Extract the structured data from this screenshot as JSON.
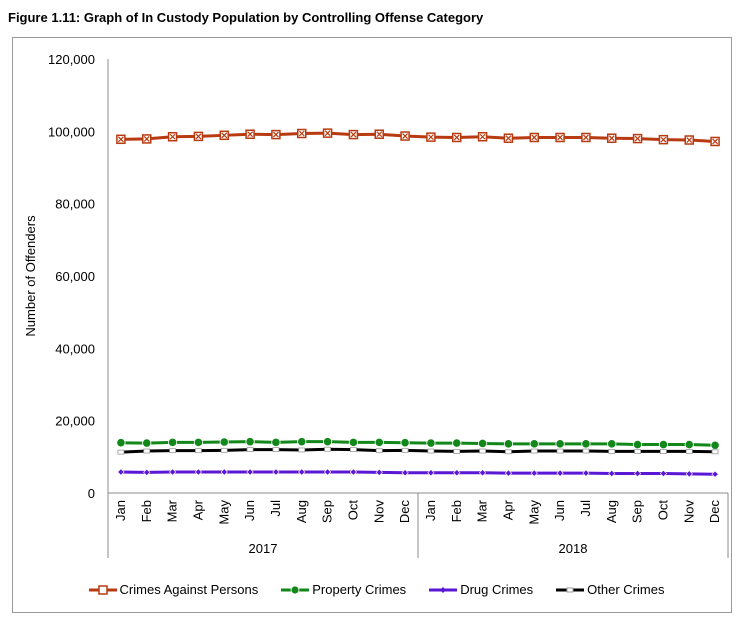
{
  "figure_title": "Figure 1.11:  Graph of In Custody Population by Controlling Offense Category",
  "chart_data": {
    "type": "line",
    "title": "Graph of In Custody Population by Controlling Offense Category",
    "xlabel": "",
    "ylabel": "Number of Offenders",
    "ylim": [
      0,
      120000
    ],
    "yticks": [
      0,
      20000,
      40000,
      60000,
      80000,
      100000,
      120000
    ],
    "ytick_labels": [
      "0",
      "20,000",
      "40,000",
      "60,000",
      "80,000",
      "100,000",
      "120,000"
    ],
    "grid": false,
    "legend_position": "bottom",
    "groups": [
      {
        "label": "2017",
        "months": [
          "Jan",
          "Feb",
          "Mar",
          "Apr",
          "May",
          "Jun",
          "Jul",
          "Aug",
          "Sep",
          "Oct",
          "Nov",
          "Dec"
        ]
      },
      {
        "label": "2018",
        "months": [
          "Jan",
          "Feb",
          "Mar",
          "Apr",
          "May",
          "Jun",
          "Jul",
          "Aug",
          "Sep",
          "Oct",
          "Nov",
          "Dec"
        ]
      }
    ],
    "series": [
      {
        "name": "Crimes Against Persons",
        "color": "#b83a10",
        "marker": "x-box",
        "values": [
          97800,
          97900,
          98500,
          98600,
          98900,
          99200,
          99100,
          99400,
          99500,
          99100,
          99200,
          98700,
          98400,
          98300,
          98500,
          98100,
          98300,
          98300,
          98300,
          98100,
          98000,
          97700,
          97600,
          97200
        ]
      },
      {
        "name": "Property Crimes",
        "color": "#12871a",
        "marker": "circle",
        "values": [
          13900,
          13800,
          14000,
          14000,
          14100,
          14200,
          14000,
          14200,
          14200,
          14000,
          14000,
          13900,
          13800,
          13800,
          13700,
          13600,
          13600,
          13600,
          13600,
          13600,
          13400,
          13400,
          13400,
          13200
        ]
      },
      {
        "name": "Drug Crimes",
        "color": "#5b17d6",
        "marker": "diamond",
        "values": [
          5800,
          5700,
          5800,
          5800,
          5800,
          5800,
          5800,
          5800,
          5800,
          5800,
          5700,
          5600,
          5600,
          5600,
          5600,
          5500,
          5500,
          5500,
          5500,
          5400,
          5400,
          5400,
          5300,
          5200
        ]
      },
      {
        "name": "Other Crimes",
        "color": "#000000",
        "marker": "square",
        "values": [
          11300,
          11600,
          11700,
          11700,
          11800,
          12000,
          12000,
          11900,
          12100,
          12000,
          11700,
          11800,
          11600,
          11500,
          11600,
          11400,
          11600,
          11600,
          11600,
          11500,
          11500,
          11500,
          11500,
          11400
        ]
      }
    ]
  }
}
